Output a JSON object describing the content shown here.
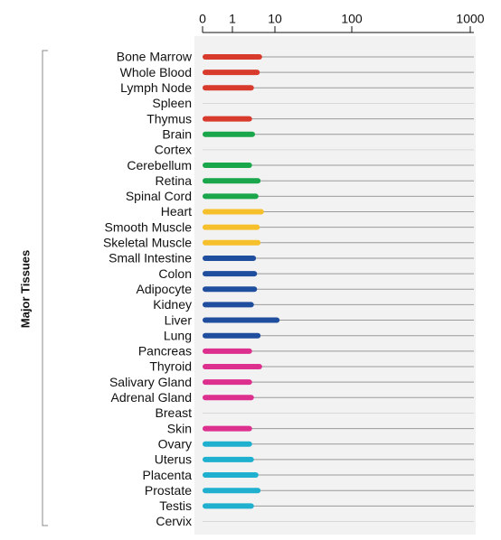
{
  "chart_data": {
    "type": "bar",
    "orientation": "horizontal",
    "group_label": "Major Tissues",
    "categories": [
      "Bone Marrow",
      "Whole Blood",
      "Lymph Node",
      "Spleen",
      "Thymus",
      "Brain",
      "Cortex",
      "Cerebellum",
      "Retina",
      "Spinal Cord",
      "Heart",
      "Smooth Muscle",
      "Skeletal Muscle",
      "Small Intestine",
      "Colon",
      "Adipocyte",
      "Kidney",
      "Liver",
      "Lung",
      "Pancreas",
      "Thyroid",
      "Salivary Gland",
      "Adrenal Gland",
      "Breast",
      "Skin",
      "Ovary",
      "Uterus",
      "Placenta",
      "Prostate",
      "Testis",
      "Cervix"
    ],
    "values": [
      5.0,
      4.4,
      3.2,
      null,
      2.9,
      3.4,
      null,
      2.9,
      4.6,
      4.1,
      5.5,
      4.4,
      4.6,
      3.6,
      3.8,
      3.8,
      3.2,
      11.5,
      4.6,
      2.9,
      5.0,
      2.9,
      3.2,
      null,
      2.9,
      2.9,
      3.2,
      4.1,
      4.6,
      3.2,
      null
    ],
    "colors": [
      "#d83a2c",
      "#d83a2c",
      "#d83a2c",
      "#d83a2c",
      "#d83a2c",
      "#1aa64b",
      "#1aa64b",
      "#1aa64b",
      "#1aa64b",
      "#1aa64b",
      "#f6c02c",
      "#f6c02c",
      "#f6c02c",
      "#1f4e9e",
      "#1f4e9e",
      "#1f4e9e",
      "#1f4e9e",
      "#1f4e9e",
      "#1f4e9e",
      "#dd2f8e",
      "#dd2f8e",
      "#dd2f8e",
      "#dd2f8e",
      "#dd2f8e",
      "#dd2f8e",
      "#1fb0cf",
      "#1fb0cf",
      "#1fb0cf",
      "#1fb0cf",
      "#1fb0cf",
      "#1fb0cf"
    ],
    "xlim": [
      0,
      1000
    ],
    "xticks": [
      0,
      1,
      10,
      100,
      1000
    ]
  }
}
